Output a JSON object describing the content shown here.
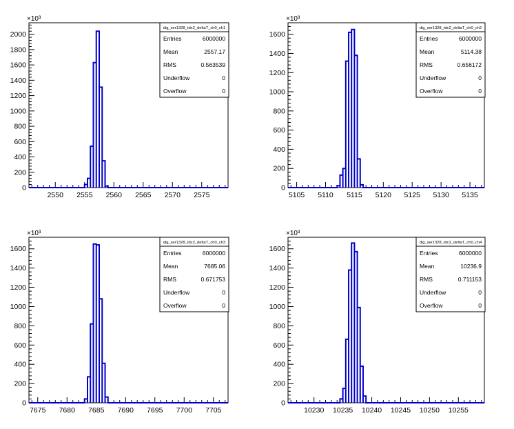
{
  "chart_data": [
    {
      "type": "histogram",
      "stats_title": "dig_ser1328_tdc2_deltaT_ch0_ch1",
      "stats": [
        {
          "label": "Entries",
          "value": "6000000"
        },
        {
          "label": "Mean",
          "value": "2557.17"
        },
        {
          "label": "RMS",
          "value": "0.563539"
        },
        {
          "label": "Underflow",
          "value": "0"
        },
        {
          "label": "Overflow",
          "value": "0"
        }
      ],
      "exponent_label": "×10³",
      "xlim": [
        2545.5,
        2579.5
      ],
      "ylim": [
        0,
        2150
      ],
      "x_ticks": [
        2550,
        2555,
        2560,
        2565,
        2570,
        2575
      ],
      "y_ticks": [
        0,
        200,
        400,
        600,
        800,
        1000,
        1200,
        1400,
        1600,
        1800,
        2000
      ],
      "bins": [
        {
          "x0": 2555.0,
          "x1": 2555.5,
          "y": 40
        },
        {
          "x0": 2555.5,
          "x1": 2556.0,
          "y": 120
        },
        {
          "x0": 2556.0,
          "x1": 2556.5,
          "y": 540
        },
        {
          "x0": 2556.5,
          "x1": 2557.0,
          "y": 1630
        },
        {
          "x0": 2557.0,
          "x1": 2557.5,
          "y": 2040
        },
        {
          "x0": 2557.5,
          "x1": 2558.0,
          "y": 1310
        },
        {
          "x0": 2558.0,
          "x1": 2558.5,
          "y": 350
        },
        {
          "x0": 2558.5,
          "x1": 2559.0,
          "y": 20
        }
      ]
    },
    {
      "type": "histogram",
      "stats_title": "dig_ser1328_tdc2_deltaT_ch0_ch2",
      "stats": [
        {
          "label": "Entries",
          "value": "6000000"
        },
        {
          "label": "Mean",
          "value": "5114.38"
        },
        {
          "label": "RMS",
          "value": "0.656172"
        },
        {
          "label": "Underflow",
          "value": "0"
        },
        {
          "label": "Overflow",
          "value": "0"
        }
      ],
      "exponent_label": "×10³",
      "xlim": [
        5103.5,
        5137.5
      ],
      "ylim": [
        0,
        1720
      ],
      "x_ticks": [
        5105,
        5110,
        5115,
        5120,
        5125,
        5130,
        5135
      ],
      "y_ticks": [
        0,
        200,
        400,
        600,
        800,
        1000,
        1200,
        1400,
        1600
      ],
      "bins": [
        {
          "x0": 5112.0,
          "x1": 5112.5,
          "y": 20
        },
        {
          "x0": 5112.5,
          "x1": 5113.0,
          "y": 130
        },
        {
          "x0": 5113.0,
          "x1": 5113.5,
          "y": 200
        },
        {
          "x0": 5113.5,
          "x1": 5114.0,
          "y": 1320
        },
        {
          "x0": 5114.0,
          "x1": 5114.5,
          "y": 1620
        },
        {
          "x0": 5114.5,
          "x1": 5115.0,
          "y": 1650
        },
        {
          "x0": 5115.0,
          "x1": 5115.5,
          "y": 1380
        },
        {
          "x0": 5115.5,
          "x1": 5116.0,
          "y": 300
        },
        {
          "x0": 5116.0,
          "x1": 5116.5,
          "y": 30
        }
      ]
    },
    {
      "type": "histogram",
      "stats_title": "dig_ser1328_tdc2_deltaT_ch0_ch3",
      "stats": [
        {
          "label": "Entries",
          "value": "6000000"
        },
        {
          "label": "Mean",
          "value": "7685.06"
        },
        {
          "label": "RMS",
          "value": "0.671753"
        },
        {
          "label": "Underflow",
          "value": "0"
        },
        {
          "label": "Overflow",
          "value": "0"
        }
      ],
      "exponent_label": "×10³",
      "xlim": [
        7673.5,
        7707.5
      ],
      "ylim": [
        0,
        1720
      ],
      "x_ticks": [
        7675,
        7680,
        7685,
        7690,
        7695,
        7700,
        7705
      ],
      "y_ticks": [
        0,
        200,
        400,
        600,
        800,
        1000,
        1200,
        1400,
        1600
      ],
      "bins": [
        {
          "x0": 7683.0,
          "x1": 7683.5,
          "y": 40
        },
        {
          "x0": 7683.5,
          "x1": 7684.0,
          "y": 270
        },
        {
          "x0": 7684.0,
          "x1": 7684.5,
          "y": 820
        },
        {
          "x0": 7684.5,
          "x1": 7685.0,
          "y": 1650
        },
        {
          "x0": 7685.0,
          "x1": 7685.5,
          "y": 1640
        },
        {
          "x0": 7685.5,
          "x1": 7686.0,
          "y": 1080
        },
        {
          "x0": 7686.0,
          "x1": 7686.5,
          "y": 410
        },
        {
          "x0": 7686.5,
          "x1": 7687.0,
          "y": 60
        }
      ]
    },
    {
      "type": "histogram",
      "stats_title": "dig_ser1328_tdc2_deltaT_ch0_ch4",
      "stats": [
        {
          "label": "Entries",
          "value": "6000000"
        },
        {
          "label": "Mean",
          "value": "10236.9"
        },
        {
          "label": "RMS",
          "value": "0.711153"
        },
        {
          "label": "Underflow",
          "value": "0"
        },
        {
          "label": "Overflow",
          "value": "0"
        }
      ],
      "exponent_label": "×10³",
      "xlim": [
        10225.5,
        10259.5
      ],
      "ylim": [
        0,
        1720
      ],
      "x_ticks": [
        10230,
        10235,
        10240,
        10245,
        10250,
        10255
      ],
      "y_ticks": [
        0,
        200,
        400,
        600,
        800,
        1000,
        1200,
        1400,
        1600
      ],
      "bins": [
        {
          "x0": 10234.5,
          "x1": 10235.0,
          "y": 40
        },
        {
          "x0": 10235.0,
          "x1": 10235.5,
          "y": 150
        },
        {
          "x0": 10235.5,
          "x1": 10236.0,
          "y": 660
        },
        {
          "x0": 10236.0,
          "x1": 10236.5,
          "y": 1380
        },
        {
          "x0": 10236.5,
          "x1": 10237.0,
          "y": 1660
        },
        {
          "x0": 10237.0,
          "x1": 10237.5,
          "y": 1570
        },
        {
          "x0": 10237.5,
          "x1": 10238.0,
          "y": 990
        },
        {
          "x0": 10238.0,
          "x1": 10238.5,
          "y": 380
        },
        {
          "x0": 10238.5,
          "x1": 10239.0,
          "y": 70
        }
      ]
    }
  ],
  "colors": {
    "histogram_line": "#0000cc",
    "axis": "#000000",
    "background": "#ffffff"
  }
}
